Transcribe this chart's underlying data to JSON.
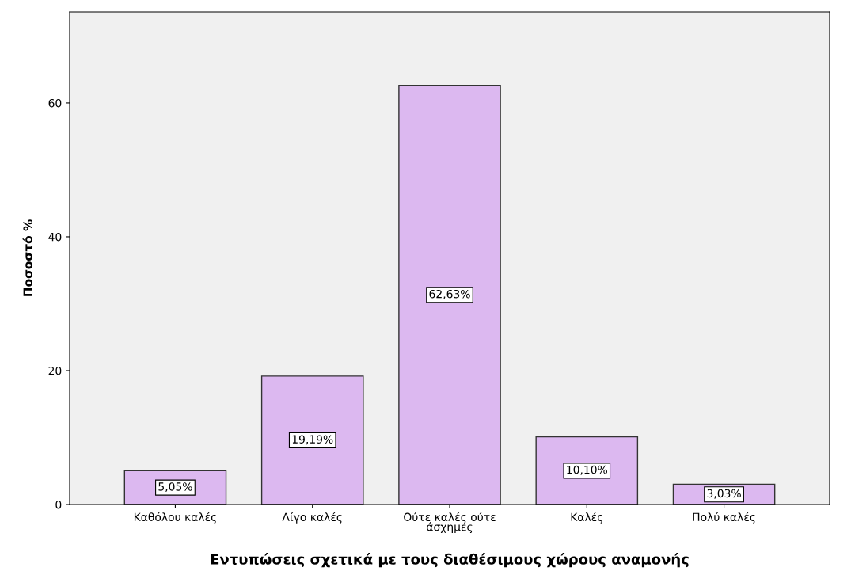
{
  "chart_data": {
    "type": "bar",
    "xlabel": "Εντυπώσεις σχετικά με τους διαθέσιμους χώρους αναμονής",
    "ylabel": "Ποσοστό %",
    "categories": [
      "Καθόλου καλές",
      "Λίγο καλές",
      "Ούτε καλές ούτε άσχημες",
      "Καλές",
      "Πολύ καλές"
    ],
    "values": [
      5.05,
      19.19,
      62.63,
      10.1,
      3.03
    ],
    "value_labels": [
      "5,05%",
      "19,19%",
      "62,63%",
      "10,10%",
      "3,03%"
    ],
    "color": "#dcb8f0",
    "ylim": [
      0,
      73.6
    ],
    "yticks": [
      0,
      20,
      40,
      60
    ],
    "grid": false,
    "legend": false
  }
}
